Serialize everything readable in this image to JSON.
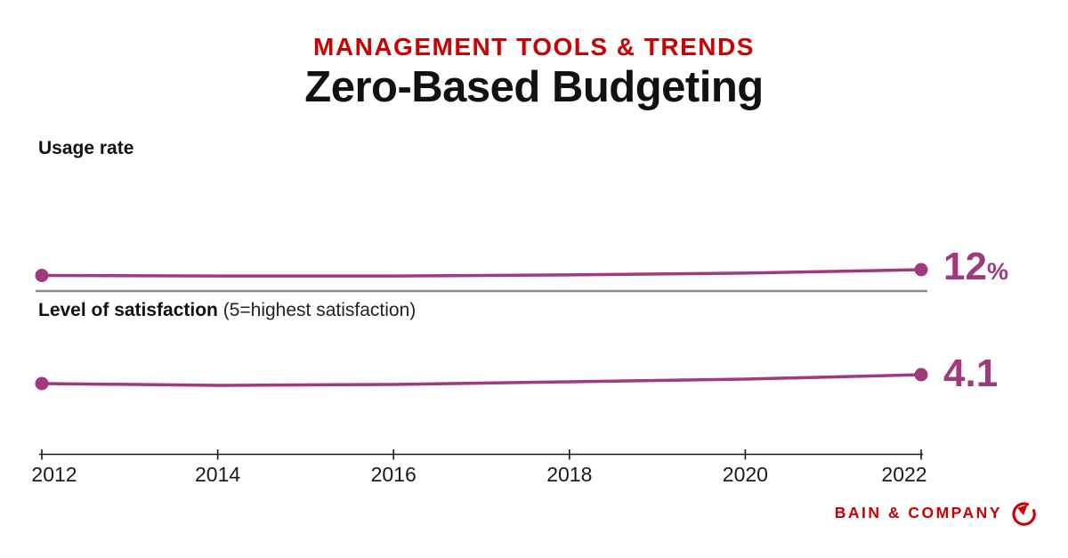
{
  "header": {
    "eyebrow": "MANAGEMENT TOOLS & TRENDS",
    "title": "Zero-Based Budgeting"
  },
  "usage": {
    "label": "Usage rate",
    "end_value": "12",
    "end_unit": "%"
  },
  "satisfaction": {
    "label_bold": "Level of satisfaction",
    "label_note": " (5=highest satisfaction)",
    "end_value": "4.1"
  },
  "axis": {
    "years": [
      "2012",
      "2014",
      "2016",
      "2018",
      "2020",
      "2022"
    ]
  },
  "footer": {
    "brand": "BAIN & COMPANY",
    "logo_icon": "bain-compass-logo"
  },
  "colors": {
    "accent_red": "#cc0000",
    "line_plum": "#a1397f",
    "divider_gray": "#8a8a8a",
    "axis_black": "#1a1a1a"
  },
  "chart_data": [
    {
      "type": "line",
      "title": "Usage rate",
      "x": [
        2012,
        2014,
        2016,
        2018,
        2020,
        2022
      ],
      "series": [
        {
          "name": "Zero-Based Budgeting usage rate (%)",
          "values": [
            11,
            10.9,
            10.9,
            11.1,
            11.4,
            12
          ]
        }
      ],
      "end_label": "12%",
      "xlim": [
        2012,
        2022
      ],
      "grid": false,
      "legend": "none"
    },
    {
      "type": "line",
      "title": "Level of satisfaction (5=highest satisfaction)",
      "x": [
        2012,
        2014,
        2016,
        2018,
        2020,
        2022
      ],
      "series": [
        {
          "name": "Zero-Based Budgeting satisfaction (1-5)",
          "values": [
            4.0,
            3.98,
            3.99,
            4.02,
            4.05,
            4.1
          ]
        }
      ],
      "end_label": "4.1",
      "xlim": [
        2012,
        2022
      ],
      "grid": false,
      "legend": "none"
    }
  ]
}
